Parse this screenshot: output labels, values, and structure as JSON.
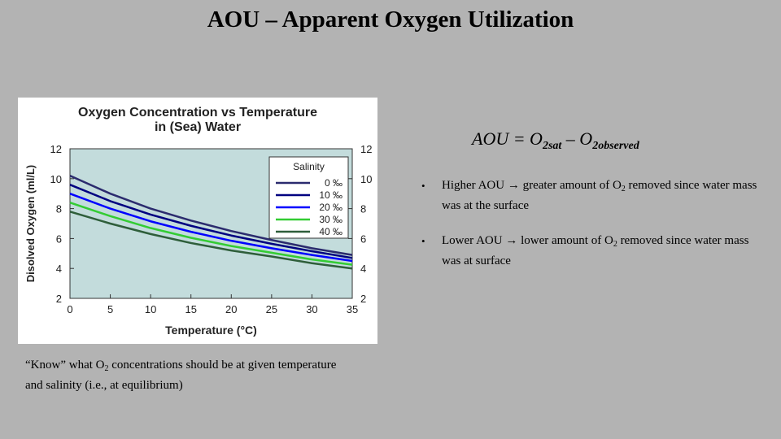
{
  "slide": {
    "title": "AOU – Apparent Oxygen Utilization",
    "formula": {
      "lhs": "AOU = O",
      "sub1": "2sat",
      "mid": " – O",
      "sub2": "2observed"
    },
    "bullets": [
      {
        "before": "Higher AOU ",
        "arrow": "→",
        "after": " greater amount of O",
        "sub": "2",
        "rest": " removed since water mass was at the surface"
      },
      {
        "before": "Lower AOU ",
        "arrow": "→",
        "after": " lower amount of O",
        "sub": "2",
        "rest": " removed since water mass was at surface"
      }
    ],
    "bullet_symbol": "•",
    "note": {
      "before": "“Know” what O",
      "sub": "2",
      "after": " concentrations should be at given temperature and salinity (i.e., at equilibrium)"
    }
  },
  "chart_data": {
    "type": "line",
    "title": "Oxygen Concentration vs Temperature",
    "subtitle": "in (Sea) Water",
    "xlabel": "Temperature (°C)",
    "ylabel": "Disolved Oxygen (ml/L)",
    "x": [
      0,
      5,
      10,
      15,
      20,
      25,
      30,
      35
    ],
    "xlim": [
      0,
      35
    ],
    "ylim": [
      2,
      12
    ],
    "xticks": [
      0,
      5,
      10,
      15,
      20,
      25,
      30,
      35
    ],
    "yticks": [
      2,
      4,
      6,
      8,
      10,
      12
    ],
    "legend_title": "Salinity",
    "legend_position": "top-right",
    "plot_background": "#c3dcdc",
    "series": [
      {
        "name": "0 ‰",
        "color": "#2b2b6e",
        "values": [
          10.2,
          9.0,
          8.0,
          7.2,
          6.5,
          5.9,
          5.35,
          4.9
        ]
      },
      {
        "name": "10 ‰",
        "color": "#000080",
        "values": [
          9.6,
          8.5,
          7.6,
          6.85,
          6.2,
          5.65,
          5.15,
          4.7
        ]
      },
      {
        "name": "20 ‰",
        "color": "#0000ff",
        "values": [
          9.0,
          8.0,
          7.15,
          6.45,
          5.85,
          5.35,
          4.9,
          4.5
        ]
      },
      {
        "name": "30 ‰",
        "color": "#33cc33",
        "values": [
          8.4,
          7.5,
          6.7,
          6.05,
          5.5,
          5.05,
          4.6,
          4.25
        ]
      },
      {
        "name": "40 ‰",
        "color": "#2e5e3a",
        "values": [
          7.8,
          7.0,
          6.3,
          5.7,
          5.2,
          4.8,
          4.35,
          4.0
        ]
      }
    ]
  }
}
